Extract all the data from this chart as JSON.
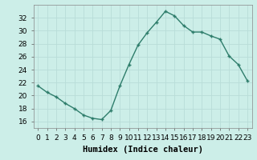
{
  "x": [
    0,
    1,
    2,
    3,
    4,
    5,
    6,
    7,
    8,
    9,
    10,
    11,
    12,
    13,
    14,
    15,
    16,
    17,
    18,
    19,
    20,
    21,
    22,
    23
  ],
  "y": [
    21.5,
    20.5,
    19.8,
    18.8,
    18.0,
    17.0,
    16.5,
    16.3,
    17.7,
    21.5,
    24.8,
    27.8,
    29.7,
    31.3,
    33.0,
    32.3,
    30.8,
    29.8,
    29.8,
    29.2,
    28.7,
    26.1,
    24.8,
    22.3
  ],
  "line_color": "#2e7d6b",
  "marker": "+",
  "background_color": "#cceee8",
  "grid_color": "#b8ddd8",
  "xlabel": "Humidex (Indice chaleur)",
  "ylim": [
    15,
    34
  ],
  "yticks": [
    16,
    18,
    20,
    22,
    24,
    26,
    28,
    30,
    32
  ],
  "xlim": [
    -0.5,
    23.5
  ],
  "xticks": [
    0,
    1,
    2,
    3,
    4,
    5,
    6,
    7,
    8,
    9,
    10,
    11,
    12,
    13,
    14,
    15,
    16,
    17,
    18,
    19,
    20,
    21,
    22,
    23
  ],
  "xtick_labels": [
    "0",
    "1",
    "2",
    "3",
    "4",
    "5",
    "6",
    "7",
    "8",
    "9",
    "10",
    "11",
    "12",
    "13",
    "14",
    "15",
    "16",
    "17",
    "18",
    "19",
    "20",
    "21",
    "22",
    "23"
  ],
  "xlabel_fontsize": 7.5,
  "tick_fontsize": 6.5,
  "linewidth": 1.0,
  "markersize": 3.5
}
